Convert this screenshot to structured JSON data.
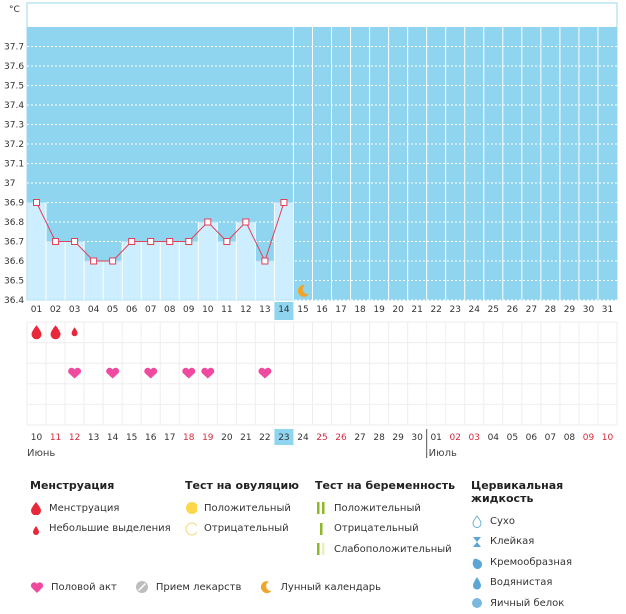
{
  "chart_data": {
    "type": "line",
    "unit_label": "°C",
    "y_ticks": [
      "37.7",
      "37.6",
      "37.5",
      "37.4",
      "37.3",
      "37.2",
      "37.1",
      "37",
      "36.9",
      "36.8",
      "36.7",
      "36.6",
      "36.5",
      "36.4"
    ],
    "ylim": [
      36.4,
      37.8
    ],
    "days": [
      "01",
      "02",
      "03",
      "04",
      "05",
      "06",
      "07",
      "08",
      "09",
      "10",
      "11",
      "12",
      "13",
      "14",
      "15",
      "16",
      "17",
      "18",
      "19",
      "20",
      "21",
      "22",
      "23",
      "24",
      "25",
      "26",
      "27",
      "28",
      "29",
      "30",
      "31"
    ],
    "temperatures": [
      36.9,
      36.7,
      36.7,
      36.6,
      36.6,
      36.7,
      36.7,
      36.7,
      36.7,
      36.8,
      36.7,
      36.8,
      36.6,
      36.9
    ],
    "current_day_index": 13,
    "lunar_day_index": 14,
    "menstruation": [
      {
        "day_index": 0,
        "kind": "heavy"
      },
      {
        "day_index": 1,
        "kind": "heavy"
      },
      {
        "day_index": 2,
        "kind": "light"
      }
    ],
    "intercourse_day_indices": [
      2,
      4,
      6,
      8,
      9,
      12
    ],
    "cycle_dates": [
      "10",
      "11",
      "12",
      "13",
      "14",
      "15",
      "16",
      "17",
      "18",
      "19",
      "20",
      "21",
      "22",
      "23",
      "24",
      "25",
      "26",
      "27",
      "28",
      "29",
      "30",
      "01",
      "02",
      "03",
      "04",
      "05",
      "06",
      "07",
      "08",
      "09",
      "10"
    ],
    "cycle_date_red_indices": [
      1,
      2,
      8,
      9,
      15,
      16,
      22,
      23,
      29,
      30
    ],
    "months": [
      {
        "label": "Июнь",
        "day_index": 0
      },
      {
        "label": "Июль",
        "day_index": 21
      }
    ],
    "colors": {
      "background": "#8fd5ef",
      "bar": "#cdeeff",
      "line": "#e0405a",
      "current": "#8fd5ef",
      "weekend": "#d42a3c"
    }
  },
  "legend": {
    "menstruation": {
      "title": "Менструация",
      "items": [
        "Менструация",
        "Небольшие выделения"
      ]
    },
    "ovulation": {
      "title": "Тест на овуляцию",
      "items": [
        "Положительный",
        "Отрицательный"
      ]
    },
    "pregnancy": {
      "title": "Тест на беременность",
      "items": [
        "Положительный",
        "Отрицательный",
        "Слабоположительный"
      ]
    },
    "cervical": {
      "title": "Цервикальная жидкость",
      "items": [
        "Сухо",
        "Клейкая",
        "Кремообразная",
        "Водянистая",
        "Яичный белок"
      ]
    },
    "bottom": {
      "intercourse": "Половой акт",
      "medication": "Прием лекарств",
      "lunar": "Лунный календарь"
    }
  },
  "icons": {
    "drop_heavy": "drop-icon",
    "drop_light": "small-drop-icon",
    "heart": "heart-icon",
    "moon": "moon-icon",
    "circle_yellow": "yellow-circle-icon",
    "circle_empty": "empty-circle-icon",
    "bar_double": "double-bar-icon",
    "bar_single": "single-bar-icon",
    "bar_faint": "faint-bar-icon",
    "drop_outline": "drop-outline-icon",
    "hourglass": "hourglass-icon",
    "drop_cream": "cream-drop-icon",
    "drop_water": "water-drop-icon",
    "egg_white": "egg-white-icon",
    "pill": "pill-icon"
  }
}
